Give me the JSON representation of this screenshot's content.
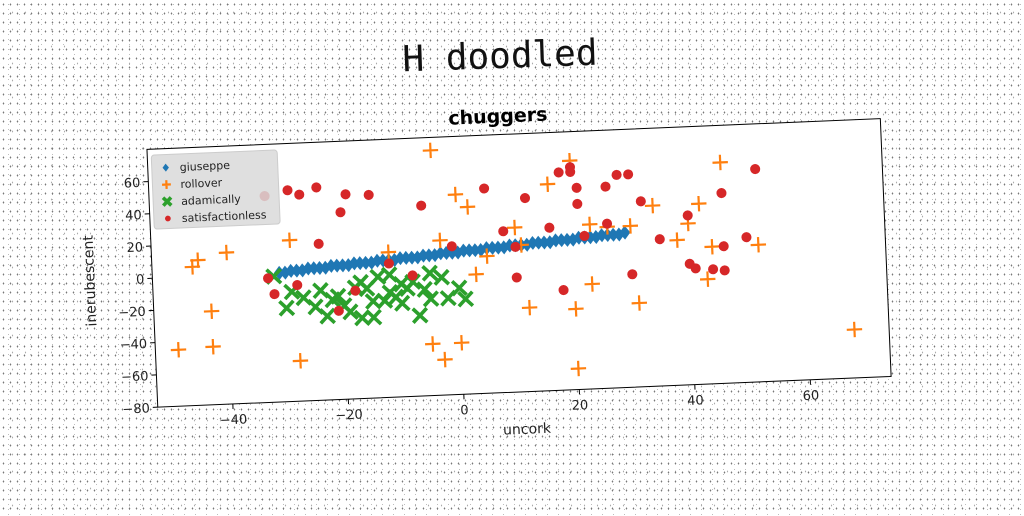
{
  "figure_title": "H doodled",
  "chart_data": {
    "type": "scatter",
    "title": "chuggers",
    "xlabel": "uncork",
    "ylabel": "inerubescent",
    "xlim": [
      -53,
      74
    ],
    "ylim": [
      -80,
      80
    ],
    "xticks": [
      -40,
      -20,
      0,
      20,
      40,
      60
    ],
    "yticks": [
      -80,
      -60,
      -40,
      -20,
      0,
      20,
      40,
      60
    ],
    "grid": false,
    "legend_position": "top-left",
    "series": [
      {
        "name": "giuseppe",
        "color": "#1f77b4",
        "marker": "diamond",
        "points": [
          [
            -31,
            0
          ],
          [
            -30,
            0
          ],
          [
            -29,
            1
          ],
          [
            -28,
            1
          ],
          [
            -27,
            1
          ],
          [
            -26,
            2
          ],
          [
            -25,
            2
          ],
          [
            -24,
            2
          ],
          [
            -23,
            2
          ],
          [
            -22,
            3
          ],
          [
            -21,
            3
          ],
          [
            -20,
            3
          ],
          [
            -19,
            3
          ],
          [
            -18,
            4
          ],
          [
            -17,
            4
          ],
          [
            -16,
            4
          ],
          [
            -15,
            4
          ],
          [
            -14,
            5
          ],
          [
            -13,
            5
          ],
          [
            -12,
            5
          ],
          [
            -11,
            5
          ],
          [
            -10,
            6
          ],
          [
            -9,
            6
          ],
          [
            -8,
            6
          ],
          [
            -7,
            6
          ],
          [
            -6,
            7
          ],
          [
            -5,
            7
          ],
          [
            -4,
            7
          ],
          [
            -3,
            8
          ],
          [
            -2,
            8
          ],
          [
            -1,
            8
          ],
          [
            0,
            8
          ],
          [
            1,
            9
          ],
          [
            2,
            9
          ],
          [
            3,
            9
          ],
          [
            4,
            9
          ],
          [
            5,
            10
          ],
          [
            6,
            10
          ],
          [
            7,
            10
          ],
          [
            8,
            10
          ],
          [
            9,
            11
          ],
          [
            10,
            11
          ],
          [
            11,
            11
          ],
          [
            12,
            11
          ],
          [
            13,
            12
          ],
          [
            14,
            12
          ],
          [
            15,
            12
          ],
          [
            16,
            12
          ],
          [
            17,
            13
          ],
          [
            18,
            13
          ],
          [
            19,
            13
          ],
          [
            20,
            13
          ],
          [
            21,
            14
          ],
          [
            22,
            14
          ],
          [
            23,
            14
          ],
          [
            24,
            14
          ],
          [
            25,
            15
          ],
          [
            26,
            15
          ],
          [
            27,
            15
          ],
          [
            28,
            15
          ],
          [
            29,
            16
          ]
        ]
      },
      {
        "name": "rollover",
        "color": "#ff7f0e",
        "marker": "plus",
        "points": [
          [
            -46,
            6
          ],
          [
            -45,
            10
          ],
          [
            -40,
            14
          ],
          [
            -43,
            -22
          ],
          [
            -49,
            -45
          ],
          [
            -43,
            -44
          ],
          [
            -28,
            -55
          ],
          [
            -29,
            20
          ],
          [
            -12,
            10
          ],
          [
            -3,
            16
          ],
          [
            -3,
            -58
          ],
          [
            -5,
            -48
          ],
          [
            0,
            -48
          ],
          [
            -4,
            72
          ],
          [
            0,
            44
          ],
          [
            2,
            36
          ],
          [
            3,
            -6
          ],
          [
            5,
            5
          ],
          [
            10,
            22
          ],
          [
            11,
            11
          ],
          [
            12,
            -28
          ],
          [
            20,
            -30
          ],
          [
            20,
            62
          ],
          [
            23,
            22
          ],
          [
            23,
            -15
          ],
          [
            26,
            20
          ],
          [
            30,
            20
          ],
          [
            31,
            -28
          ],
          [
            34,
            32
          ],
          [
            38,
            10
          ],
          [
            40,
            20
          ],
          [
            42,
            32
          ],
          [
            43,
            -15
          ],
          [
            44,
            5
          ],
          [
            46,
            57
          ],
          [
            52,
            5
          ],
          [
            68,
            -50
          ],
          [
            20,
            -67
          ],
          [
            16,
            48
          ]
        ]
      },
      {
        "name": "adamically",
        "color": "#2ca02c",
        "marker": "x",
        "points": [
          [
            -32,
            -2
          ],
          [
            -30,
            -22
          ],
          [
            -29,
            -12
          ],
          [
            -27,
            -16
          ],
          [
            -24,
            -12
          ],
          [
            -23,
            -28
          ],
          [
            -22,
            -18
          ],
          [
            -21,
            -16
          ],
          [
            -20,
            -22
          ],
          [
            -19,
            -26
          ],
          [
            -18,
            -11
          ],
          [
            -17,
            -8
          ],
          [
            -17,
            -30
          ],
          [
            -16,
            -12
          ],
          [
            -15,
            -30
          ],
          [
            -14,
            -5
          ],
          [
            -13,
            -20
          ],
          [
            -12,
            -4
          ],
          [
            -11,
            -18
          ],
          [
            -10,
            -22
          ],
          [
            -9,
            -13
          ],
          [
            -8,
            -9
          ],
          [
            -7,
            -30
          ],
          [
            -6,
            -14
          ],
          [
            -5,
            -20
          ],
          [
            -5,
            -4
          ],
          [
            -3,
            -7
          ],
          [
            -2,
            -20
          ],
          [
            0,
            -14
          ],
          [
            1,
            -21
          ],
          [
            -12,
            -15
          ],
          [
            -10,
            -10
          ],
          [
            -15,
            -20
          ],
          [
            -25,
            -22
          ]
        ]
      },
      {
        "name": "satisfactionless",
        "color": "#d62728",
        "marker": "circle",
        "points": [
          [
            -33,
            -3
          ],
          [
            -32,
            -13
          ],
          [
            -33,
            48
          ],
          [
            -29,
            51
          ],
          [
            -27,
            48
          ],
          [
            -24,
            52
          ],
          [
            -24,
            17
          ],
          [
            -21,
            -25
          ],
          [
            -20,
            36
          ],
          [
            -19,
            47
          ],
          [
            -18,
            -13
          ],
          [
            -15,
            46
          ],
          [
            -12,
            3
          ],
          [
            -6,
            38
          ],
          [
            5,
            47
          ],
          [
            10,
            10
          ],
          [
            10,
            -9
          ],
          [
            12,
            40
          ],
          [
            18,
            -18
          ],
          [
            18,
            55
          ],
          [
            20,
            55
          ],
          [
            21,
            45
          ],
          [
            22,
            15
          ],
          [
            21,
            35
          ],
          [
            26,
            45
          ],
          [
            28,
            52
          ],
          [
            30,
            52
          ],
          [
            30,
            -10
          ],
          [
            32,
            35
          ],
          [
            35,
            11
          ],
          [
            40,
            -5
          ],
          [
            40,
            25
          ],
          [
            41,
            -8
          ],
          [
            46,
            5
          ],
          [
            46,
            38
          ],
          [
            50,
            10
          ],
          [
            52,
            52
          ],
          [
            46,
            -10
          ],
          [
            44,
            -9
          ],
          [
            16,
            21
          ],
          [
            20,
            58
          ],
          [
            26,
            22
          ],
          [
            8,
            20
          ],
          [
            -1,
            12
          ],
          [
            -8,
            -5
          ],
          [
            -28,
            -8
          ]
        ]
      }
    ]
  }
}
